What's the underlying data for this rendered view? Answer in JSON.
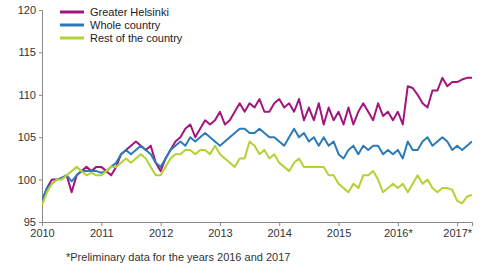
{
  "chart_data": {
    "type": "line",
    "categories": [
      "2010",
      null,
      null,
      null,
      null,
      null,
      null,
      null,
      null,
      null,
      null,
      null,
      "2011",
      null,
      null,
      null,
      null,
      null,
      null,
      null,
      null,
      null,
      null,
      null,
      "2012",
      null,
      null,
      null,
      null,
      null,
      null,
      null,
      null,
      null,
      null,
      null,
      "2013",
      null,
      null,
      null,
      null,
      null,
      null,
      null,
      null,
      null,
      null,
      null,
      "2014",
      null,
      null,
      null,
      null,
      null,
      null,
      null,
      null,
      null,
      null,
      null,
      "2015",
      null,
      null,
      null,
      null,
      null,
      null,
      null,
      null,
      null,
      null,
      null,
      "2016*",
      null,
      null,
      null,
      null,
      null,
      null,
      null,
      null,
      null,
      null,
      null,
      "2017*",
      null,
      null,
      null
    ],
    "series": [
      {
        "name": "Greater Helsinki",
        "color": "#a3157e",
        "values": [
          97.5,
          99,
          100,
          100,
          100.2,
          100.5,
          98.5,
          100.5,
          101,
          101.5,
          101,
          101.5,
          101.5,
          101,
          100.5,
          101.5,
          103,
          103.5,
          104,
          104.5,
          104,
          103.5,
          104,
          102,
          101,
          102.5,
          103.5,
          104.5,
          105,
          106,
          106.5,
          105,
          106,
          107,
          106.5,
          107,
          108,
          106.5,
          107,
          108,
          109,
          108,
          109,
          108.5,
          109.5,
          108,
          108,
          109,
          109.5,
          108.5,
          109,
          108,
          109.5,
          107,
          108.5,
          107,
          109,
          106.5,
          108.5,
          107,
          108,
          106.5,
          108.5,
          106.5,
          108,
          109,
          108,
          107,
          109,
          107.5,
          108,
          107,
          108,
          106.5,
          111,
          110.8,
          110,
          109,
          108.5,
          110.5,
          110.5,
          112,
          111,
          111.5,
          111.5,
          111.8,
          112,
          112
        ]
      },
      {
        "name": "Whole country",
        "color": "#2b7bb9",
        "values": [
          97.5,
          99,
          99.5,
          100,
          100.2,
          100.5,
          99.8,
          100.5,
          101,
          101,
          101,
          101,
          100.8,
          101,
          101.5,
          102,
          103,
          103.5,
          103,
          103.5,
          104,
          103.5,
          103,
          102,
          101.5,
          102.5,
          103.5,
          104,
          104.5,
          104,
          105,
          104.5,
          105,
          105.5,
          105,
          104.5,
          104,
          104.5,
          105,
          105.5,
          106,
          106,
          105.5,
          105.5,
          106,
          105.5,
          105,
          105,
          104.5,
          104,
          105,
          106,
          105,
          105.5,
          104.5,
          105,
          104,
          105,
          104,
          104.5,
          103,
          102.5,
          103.5,
          104,
          103,
          104,
          103.5,
          104,
          104,
          103,
          103.5,
          103,
          103.5,
          102.5,
          104.5,
          103.5,
          103.5,
          104.5,
          105,
          104,
          104.5,
          105,
          104.5,
          103.5,
          104,
          103.5,
          104,
          104.5
        ]
      },
      {
        "name": "Rest of the country",
        "color": "#b2d235",
        "values": [
          97,
          98.5,
          99.5,
          100,
          100,
          100.5,
          101,
          101.5,
          101,
          100.5,
          100.8,
          100.5,
          100.5,
          101,
          101.5,
          101.5,
          102,
          102.5,
          102,
          102.5,
          103,
          102.5,
          101.5,
          100.5,
          100.5,
          101.5,
          102.5,
          103,
          103,
          103.5,
          103.5,
          103,
          103.5,
          103.5,
          103,
          104,
          103,
          102.5,
          102,
          101.5,
          102.5,
          102.5,
          104.5,
          104,
          103,
          103.5,
          102.5,
          103,
          102,
          101.5,
          101,
          102,
          102.5,
          101.5,
          101.5,
          101.5,
          101.5,
          101.5,
          100.5,
          100.5,
          99.5,
          99,
          98.5,
          99.5,
          99,
          100.5,
          100.5,
          101,
          100,
          98.5,
          99,
          99.5,
          99,
          99.5,
          98.5,
          99.5,
          100.5,
          99.5,
          100,
          99,
          98.5,
          99,
          99,
          98.8,
          97.5,
          97.2,
          98,
          98.2
        ]
      }
    ],
    "ylim": [
      95,
      120
    ],
    "yticks": [
      95,
      100,
      105,
      110,
      115,
      120
    ],
    "grid": false,
    "legend": "upper left",
    "annotations": [
      "*Preliminary data for the years 2016 and 2017"
    ]
  }
}
